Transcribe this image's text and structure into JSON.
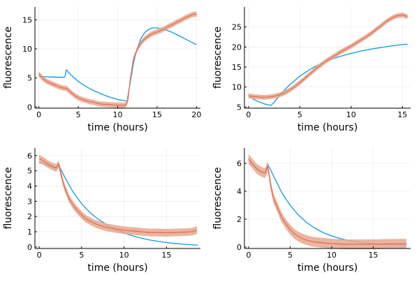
{
  "colors": {
    "model": "#0C9AE0",
    "data_band": "#E8A78E",
    "data_line": "#E26C4C",
    "grid": "#ECECEC",
    "axis": "#000000"
  },
  "chart_data": [
    {
      "type": "line",
      "xlabel": "time (hours)",
      "ylabel": "fluorescence",
      "xlim": [
        -0.5,
        20.5
      ],
      "ylim": [
        -0.2,
        17.2
      ],
      "xticks": [
        0,
        5,
        10,
        15,
        20
      ],
      "xtick_labels": [
        "0",
        "5",
        "10",
        "15",
        "20"
      ],
      "yticks": [
        0,
        5,
        10,
        15
      ],
      "ytick_labels": [
        "0",
        "5",
        "10",
        "15"
      ],
      "grid": true,
      "legend": "none",
      "series": [
        {
          "role": "model",
          "color": "#0C9AE0",
          "x": [
            0,
            1,
            2,
            3,
            3.3,
            3.5,
            4,
            5,
            6,
            7,
            8,
            9,
            10,
            11,
            11.2,
            11.5,
            12,
            12.5,
            13,
            13.5,
            14,
            14.5,
            15,
            16,
            17,
            18,
            19,
            20
          ],
          "y": [
            5.3,
            5.2,
            5.15,
            5.1,
            5.2,
            6.4,
            5.6,
            4.4,
            3.5,
            2.8,
            2.2,
            1.7,
            1.3,
            1.05,
            1.0,
            3.5,
            7.5,
            10.2,
            11.9,
            12.9,
            13.4,
            13.6,
            13.6,
            13.3,
            12.8,
            12.1,
            11.4,
            10.7
          ]
        },
        {
          "role": "data-mean",
          "color": "#E26C4C",
          "band": 0.45,
          "x": [
            0,
            0.5,
            1,
            1.5,
            2,
            2.5,
            3,
            3.5,
            4,
            4.5,
            5,
            5.5,
            6,
            6.5,
            7,
            7.5,
            8,
            8.5,
            9,
            9.5,
            10,
            10.5,
            11,
            11.3,
            11.6,
            12,
            12.5,
            13,
            13.5,
            14,
            14.5,
            15,
            15.5,
            16,
            16.5,
            17,
            17.5,
            18,
            18.5,
            19,
            19.5,
            20
          ],
          "y": [
            5.7,
            4.9,
            4.4,
            4.1,
            3.8,
            3.5,
            3.3,
            3.2,
            2.6,
            2.0,
            1.6,
            1.3,
            1.1,
            0.9,
            0.8,
            0.6,
            0.5,
            0.45,
            0.4,
            0.35,
            0.3,
            0.3,
            0.3,
            1.2,
            4.8,
            8.2,
            10.0,
            11.1,
            11.8,
            12.3,
            12.7,
            12.9,
            13.2,
            13.5,
            13.9,
            14.2,
            14.6,
            14.9,
            15.3,
            15.6,
            15.9,
            16.0
          ]
        }
      ]
    },
    {
      "type": "line",
      "xlabel": "time (hours)",
      "ylabel": "fluorescence",
      "xlim": [
        -0.4,
        15.8
      ],
      "ylim": [
        4.7,
        30.0
      ],
      "xticks": [
        0,
        5,
        10,
        15
      ],
      "xtick_labels": [
        "0",
        "5",
        "10",
        "15"
      ],
      "yticks": [
        5,
        10,
        15,
        20,
        25
      ],
      "ytick_labels": [
        "5",
        "10",
        "15",
        "20",
        "25"
      ],
      "grid": true,
      "legend": "none",
      "series": [
        {
          "role": "model",
          "color": "#0C9AE0",
          "x": [
            0,
            0.5,
            1,
            1.5,
            2,
            2.2,
            2.5,
            3,
            3.5,
            4,
            5,
            6,
            7,
            8,
            9,
            10,
            11,
            12,
            13,
            14,
            15,
            15.5
          ],
          "y": [
            7.8,
            6.9,
            6.3,
            5.8,
            5.5,
            5.4,
            6.2,
            7.8,
            9.2,
            10.5,
            12.7,
            14.4,
            15.8,
            16.9,
            17.7,
            18.4,
            19.0,
            19.5,
            19.9,
            20.3,
            20.6,
            20.7
          ]
        },
        {
          "role": "data-mean",
          "color": "#E26C4C",
          "band": 0.6,
          "x": [
            0,
            0.5,
            1,
            1.5,
            2,
            2.5,
            3,
            3.5,
            4,
            4.5,
            5,
            5.5,
            6,
            6.5,
            7,
            7.5,
            8,
            8.5,
            9,
            9.5,
            10,
            10.5,
            11,
            11.5,
            12,
            12.5,
            13,
            13.5,
            14,
            14.5,
            15,
            15.5
          ],
          "y": [
            7.8,
            7.6,
            7.5,
            7.4,
            7.5,
            7.7,
            8.0,
            8.5,
            9.2,
            10.1,
            11.1,
            12.2,
            13.3,
            14.4,
            15.4,
            16.4,
            17.2,
            18.0,
            18.8,
            19.5,
            20.2,
            21.0,
            21.8,
            22.6,
            23.5,
            24.5,
            25.5,
            26.5,
            27.3,
            27.8,
            28.0,
            27.6
          ]
        }
      ]
    },
    {
      "type": "line",
      "xlabel": "time (hours)",
      "ylabel": "fluorescence",
      "xlim": [
        -0.5,
        19.0
      ],
      "ylim": [
        -0.1,
        6.5
      ],
      "xticks": [
        0,
        5,
        10,
        15
      ],
      "xtick_labels": [
        "0",
        "5",
        "10",
        "15"
      ],
      "yticks": [
        0,
        1,
        2,
        3,
        4,
        5,
        6
      ],
      "ytick_labels": [
        "0",
        "1",
        "2",
        "3",
        "4",
        "5",
        "6"
      ],
      "grid": true,
      "legend": "none",
      "series": [
        {
          "role": "model",
          "color": "#0C9AE0",
          "x": [
            0,
            0.5,
            1,
            1.5,
            2,
            2.3,
            3,
            4,
            5,
            6,
            7,
            8,
            9,
            10,
            11,
            12,
            13,
            14,
            15,
            16,
            17,
            18,
            18.7
          ],
          "y": [
            5.55,
            5.45,
            5.35,
            5.25,
            5.15,
            5.4,
            4.6,
            3.6,
            2.85,
            2.25,
            1.8,
            1.45,
            1.15,
            0.92,
            0.73,
            0.58,
            0.46,
            0.37,
            0.29,
            0.23,
            0.18,
            0.14,
            0.12
          ]
        },
        {
          "role": "data-mean",
          "color": "#E26C4C",
          "band": 0.25,
          "x": [
            0,
            0.5,
            1,
            1.5,
            2,
            2.3,
            2.7,
            3,
            3.5,
            4,
            4.5,
            5,
            5.5,
            6,
            6.5,
            7,
            7.5,
            8,
            9,
            10,
            11,
            12,
            13,
            14,
            15,
            16,
            17,
            18,
            18.6
          ],
          "y": [
            5.8,
            5.65,
            5.45,
            5.3,
            5.2,
            5.45,
            4.5,
            3.9,
            3.2,
            2.75,
            2.4,
            2.1,
            1.85,
            1.7,
            1.55,
            1.45,
            1.35,
            1.28,
            1.18,
            1.1,
            1.05,
            1.0,
            0.95,
            0.95,
            0.93,
            0.95,
            0.97,
            1.0,
            1.1
          ]
        }
      ]
    },
    {
      "type": "line",
      "xlabel": "time (hours)",
      "ylabel": "fluorescence",
      "xlim": [
        -0.5,
        19.5
      ],
      "ylim": [
        -0.1,
        7.1
      ],
      "xticks": [
        0,
        5,
        10,
        15
      ],
      "xtick_labels": [
        "0",
        "5",
        "10",
        "15"
      ],
      "yticks": [
        0,
        2,
        4,
        6
      ],
      "ytick_labels": [
        "0",
        "2",
        "4",
        "6"
      ],
      "grid": true,
      "legend": "none",
      "series": [
        {
          "role": "model",
          "color": "#0C9AE0",
          "x": [
            0,
            0.5,
            1,
            1.5,
            2,
            2.3,
            3,
            4,
            5,
            6,
            7,
            8,
            9,
            10,
            11,
            12,
            13,
            14,
            15,
            16,
            17,
            18,
            19
          ],
          "y": [
            6.3,
            5.9,
            5.6,
            5.4,
            5.3,
            5.95,
            5.1,
            3.9,
            3.0,
            2.3,
            1.75,
            1.35,
            1.03,
            0.8,
            0.62,
            0.48,
            0.38,
            0.3,
            0.25,
            0.21,
            0.18,
            0.16,
            0.14
          ]
        },
        {
          "role": "data-mean",
          "color": "#E26C4C",
          "band": 0.35,
          "x": [
            0,
            0.5,
            1,
            1.5,
            2,
            2.3,
            2.7,
            3,
            3.5,
            4,
            4.5,
            5,
            5.5,
            6,
            6.5,
            7,
            7.5,
            8,
            9,
            10,
            11,
            12,
            13,
            14,
            15,
            16,
            17,
            18,
            19
          ],
          "y": [
            6.3,
            5.95,
            5.6,
            5.4,
            5.3,
            5.8,
            4.3,
            3.5,
            2.8,
            2.1,
            1.65,
            1.25,
            0.95,
            0.75,
            0.6,
            0.5,
            0.42,
            0.37,
            0.3,
            0.25,
            0.22,
            0.2,
            0.2,
            0.2,
            0.2,
            0.22,
            0.23,
            0.24,
            0.24
          ]
        }
      ]
    }
  ]
}
